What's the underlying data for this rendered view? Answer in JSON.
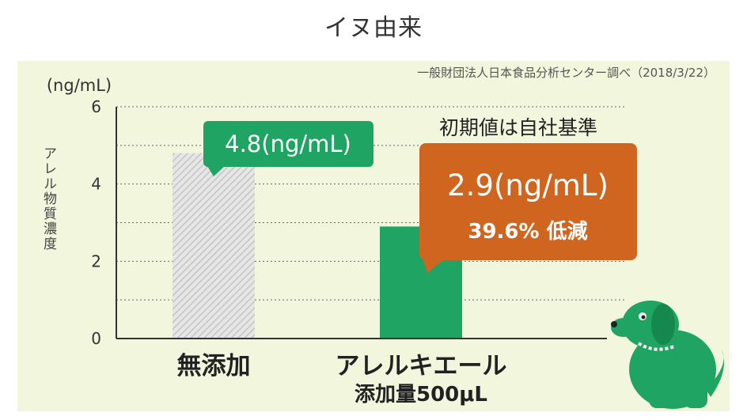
{
  "page": {
    "title": "イヌ由来"
  },
  "chart_data": {
    "type": "bar",
    "source": "一般財団法人日本食品分析センター調べ（2018/3/22）",
    "unit_label": "(ng/mL)",
    "ylabel": "アレル物質濃度",
    "ylim": [
      0,
      6
    ],
    "yticks": [
      0,
      2,
      4,
      6
    ],
    "grid": "dotted",
    "categories": [
      {
        "label": "無添加",
        "sublabel": ""
      },
      {
        "label": "アレルキエール",
        "sublabel": "添加量500μL"
      }
    ],
    "values": [
      4.8,
      2.9
    ],
    "bar_styles": [
      {
        "fill": "#d9d9d9",
        "pattern": "hatched"
      },
      {
        "fill": "#1fa463",
        "pattern": "solid"
      }
    ],
    "annotations": [
      {
        "text": "4.8(ng/mL)",
        "color": "#1fa463"
      },
      {
        "text": "2.9(ng/mL)",
        "subtext": "39.6% 低減",
        "color": "#d0651f"
      }
    ],
    "baseline_note": "初期値は自社基準"
  },
  "mascot": {
    "icon": "dog-icon",
    "color": "#1fa463"
  }
}
